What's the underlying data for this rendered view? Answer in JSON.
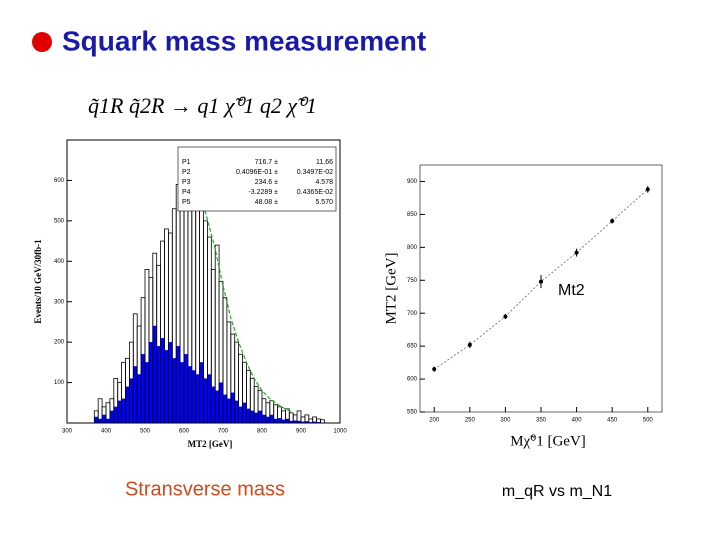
{
  "title": "Squark mass measurement",
  "formula": "q̃1R q̃2R → q1 χ̃⁰1 q2 χ̃⁰1",
  "captions": [
    "Stransverse mass",
    "m_qR  vs m_N1"
  ],
  "chart_data": [
    {
      "type": "histogram",
      "ylabel": "Events/10 GeV/30fb-1",
      "xlabel": "MT2 [GeV]",
      "xlim": [
        300,
        1000
      ],
      "ylim": [
        0,
        700
      ],
      "xticks": [
        300,
        400,
        500,
        600,
        700,
        800,
        900,
        1000
      ],
      "yticks": [
        100,
        200,
        300,
        400,
        500,
        600
      ],
      "bins": [
        370,
        380,
        390,
        400,
        410,
        420,
        430,
        440,
        450,
        460,
        470,
        480,
        490,
        500,
        510,
        520,
        530,
        540,
        550,
        560,
        570,
        580,
        590,
        600,
        610,
        620,
        630,
        640,
        650,
        660,
        670,
        680,
        690,
        700,
        710,
        720,
        730,
        740,
        750,
        760,
        770,
        780,
        790,
        800,
        810,
        820,
        830,
        840,
        850,
        860,
        870,
        880,
        890,
        900,
        910,
        920,
        930,
        940,
        950,
        960
      ],
      "series": [
        {
          "color": "#000000",
          "values": [
            30,
            60,
            40,
            50,
            60,
            110,
            100,
            150,
            160,
            200,
            270,
            240,
            310,
            380,
            360,
            420,
            390,
            450,
            480,
            470,
            530,
            590,
            560,
            620,
            680,
            540,
            600,
            560,
            500,
            460,
            380,
            440,
            350,
            310,
            250,
            220,
            200,
            170,
            150,
            130,
            110,
            90,
            80,
            60,
            50,
            55,
            45,
            40,
            30,
            35,
            25,
            20,
            30,
            15,
            20,
            10,
            15,
            10,
            8
          ]
        },
        {
          "color": "#0000ff",
          "values": [
            15,
            10,
            20,
            10,
            30,
            40,
            55,
            60,
            90,
            110,
            140,
            120,
            170,
            150,
            200,
            240,
            190,
            210,
            180,
            200,
            160,
            190,
            150,
            170,
            140,
            130,
            120,
            150,
            110,
            120,
            90,
            80,
            100,
            70,
            60,
            75,
            55,
            40,
            50,
            35,
            30,
            25,
            30,
            20,
            15,
            20,
            10,
            12,
            8,
            10,
            5,
            6,
            5,
            3,
            4,
            2,
            3,
            2,
            1
          ]
        }
      ],
      "fit": {
        "color": "#22aa22",
        "x": [
          650,
          680,
          700,
          720,
          740,
          760,
          780,
          800,
          820,
          850,
          880
        ],
        "values": [
          540,
          430,
          340,
          260,
          200,
          150,
          110,
          80,
          60,
          40,
          25
        ]
      },
      "stats": [
        [
          "P1",
          "716.7 ±",
          "11.66"
        ],
        [
          "P2",
          "0.4096E-01 ±",
          "0.3497E-02"
        ],
        [
          "P3",
          "234.6 ±",
          "4.578"
        ],
        [
          "P4",
          "-3.2289 ±",
          "0.4365E-02"
        ],
        [
          "P5",
          "48.08 ±",
          "5.570"
        ]
      ]
    },
    {
      "type": "scatter",
      "ylabel": "MT2 [GeV]",
      "xlabel": "Mχ̃⁰1 [GeV]",
      "annotation": "Mt2",
      "xlim": [
        180,
        520
      ],
      "ylim": [
        550,
        925
      ],
      "xticks": [
        200,
        250,
        300,
        350,
        400,
        450,
        500
      ],
      "yticks": [
        550,
        600,
        650,
        700,
        750,
        800,
        850,
        900
      ],
      "color": "#000000",
      "x": [
        200,
        250,
        300,
        350,
        400,
        450,
        500
      ],
      "values": [
        615,
        652,
        695,
        748,
        792,
        840,
        888
      ],
      "errors": [
        4,
        5,
        4,
        10,
        6,
        4,
        5
      ]
    }
  ]
}
